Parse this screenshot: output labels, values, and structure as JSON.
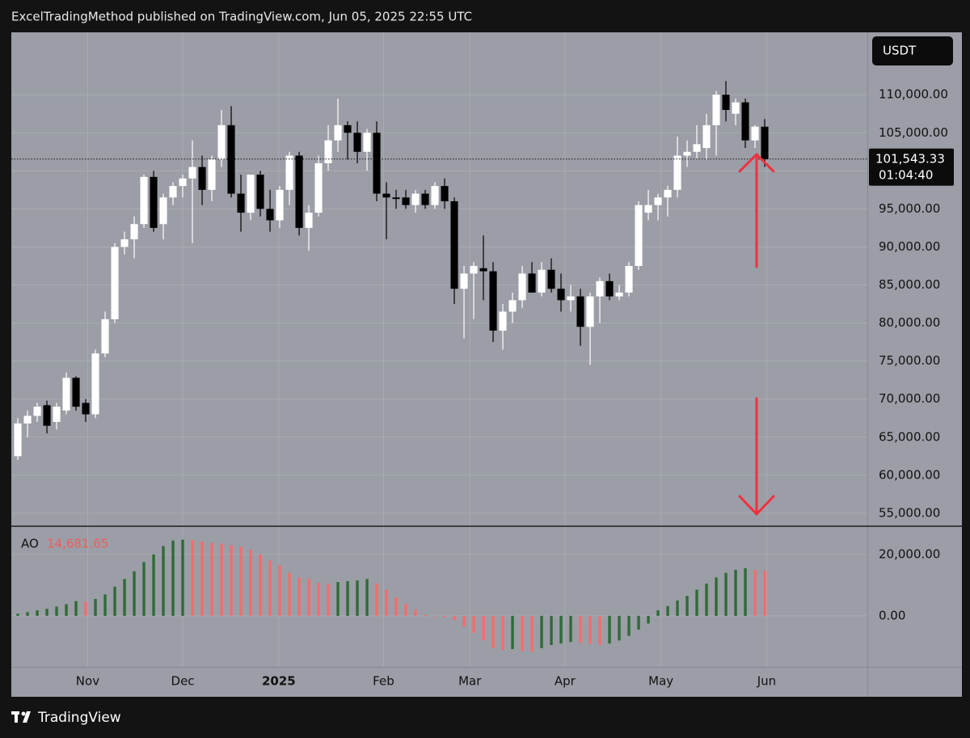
{
  "header": {
    "title": "ExcelTradingMethod published on TradingView.com, Jun 05, 2025 22:55 UTC"
  },
  "toolbar": {
    "currency": "USDT"
  },
  "footer": {
    "brand": "TradingView"
  },
  "chart_data": [
    {
      "type": "candlestick",
      "categories": [
        null,
        null,
        null,
        null,
        null,
        null,
        null,
        null,
        null,
        null,
        null,
        null,
        null,
        null,
        null,
        null,
        null,
        null,
        null,
        null,
        null,
        null,
        null,
        null,
        null,
        null,
        null,
        null,
        null,
        null,
        null,
        null,
        null,
        null,
        null,
        null,
        null,
        null,
        null,
        null,
        null,
        null,
        null,
        null,
        null,
        null,
        null,
        null,
        null,
        null,
        null,
        null,
        null,
        null,
        null,
        null,
        null,
        null,
        null,
        null,
        null,
        null,
        null,
        null,
        null,
        null,
        null,
        null,
        null,
        null,
        null,
        null,
        null,
        null,
        null,
        null,
        null,
        null
      ],
      "open": [
        62500,
        66800,
        67800,
        69200,
        67000,
        68500,
        72800,
        69500,
        68000,
        76000,
        80500,
        90000,
        91000,
        93000,
        99200,
        93000,
        96500,
        98000,
        99000,
        100500,
        97500,
        101500,
        106000,
        97000,
        94500,
        99500,
        95000,
        93500,
        97500,
        102000,
        92500,
        94500,
        101000,
        104000,
        106000,
        105000,
        102500,
        105000,
        97000,
        96500,
        96500,
        95500,
        97000,
        95500,
        98000,
        96000,
        84500,
        86500,
        87200,
        86800,
        79000,
        81500,
        83000,
        86500,
        84000,
        87000,
        84500,
        83000,
        83500,
        79500,
        83500,
        85500,
        83500,
        84000,
        87500,
        94500,
        95500,
        96500,
        97500,
        102000,
        102500,
        103000,
        106000,
        110000,
        107500,
        109000,
        104000,
        105800
      ],
      "high": [
        67500,
        68500,
        69500,
        69800,
        69500,
        73500,
        73000,
        70000,
        76500,
        81500,
        90500,
        92000,
        94000,
        99500,
        100000,
        97000,
        98500,
        99500,
        104000,
        102000,
        102000,
        108000,
        108500,
        99500,
        99500,
        100000,
        97500,
        98000,
        102500,
        102500,
        95500,
        102000,
        106000,
        109500,
        106500,
        106500,
        105500,
        106500,
        98500,
        97500,
        97500,
        97500,
        97500,
        98500,
        99000,
        96500,
        87500,
        88000,
        91500,
        88000,
        82500,
        84000,
        87500,
        88000,
        88000,
        88500,
        86500,
        85000,
        84500,
        84000,
        86000,
        86500,
        85000,
        88000,
        96000,
        97500,
        97000,
        98000,
        104500,
        104000,
        106000,
        107500,
        110500,
        111800,
        109500,
        109500,
        106000,
        106800
      ],
      "low": [
        62000,
        65000,
        67000,
        65500,
        66000,
        68000,
        68500,
        67000,
        67500,
        75500,
        80000,
        89000,
        88500,
        92500,
        92000,
        91000,
        95500,
        96500,
        90500,
        95500,
        96000,
        100500,
        96500,
        92000,
        93500,
        94000,
        92000,
        92500,
        95500,
        91500,
        89500,
        94000,
        100000,
        102500,
        101500,
        101000,
        100000,
        96000,
        91000,
        95000,
        95000,
        94500,
        95000,
        95000,
        95000,
        82500,
        78000,
        80500,
        83000,
        77500,
        76500,
        80000,
        82000,
        84000,
        83500,
        84000,
        81500,
        81500,
        77000,
        74500,
        80000,
        83000,
        83000,
        83500,
        87000,
        93500,
        93500,
        94000,
        96500,
        100500,
        101500,
        101500,
        102000,
        106500,
        106000,
        103000,
        103000,
        100500
      ],
      "close": [
        66800,
        67800,
        69000,
        66500,
        69000,
        72800,
        69000,
        68000,
        76000,
        80500,
        90000,
        91000,
        93000,
        99200,
        92500,
        96500,
        98000,
        99000,
        100500,
        97500,
        101500,
        106000,
        97000,
        94500,
        99500,
        95000,
        93500,
        97500,
        102000,
        92500,
        94500,
        101000,
        104000,
        106000,
        105000,
        102500,
        105000,
        97000,
        96500,
        96300,
        95500,
        97000,
        95500,
        98000,
        96000,
        84500,
        86500,
        87500,
        86800,
        79000,
        81500,
        83000,
        86500,
        84000,
        87000,
        84500,
        83000,
        83500,
        79500,
        83500,
        85500,
        83500,
        84000,
        87500,
        95500,
        95500,
        96500,
        97500,
        102000,
        102500,
        103500,
        106000,
        110000,
        108000,
        109000,
        104000,
        105800,
        101543.33
      ],
      "up_color": "#ffffff",
      "down_color": "#000000",
      "last_price": {
        "value": 101543.33,
        "label": "101,543.33"
      },
      "countdown": "01:04:40",
      "xlim": [
        -0.67,
        87.58
      ],
      "xticks": [
        {
          "value": 7.2,
          "label": "Nov"
        },
        {
          "value": 17.0,
          "label": "Dec"
        },
        {
          "value": 26.9,
          "label": "2025",
          "bold": true
        },
        {
          "value": 37.7,
          "label": "Feb"
        },
        {
          "value": 46.6,
          "label": "Mar"
        },
        {
          "value": 56.4,
          "label": "Apr"
        },
        {
          "value": 66.3,
          "label": "May"
        },
        {
          "value": 77.2,
          "label": "Jun"
        }
      ],
      "ylim": [
        53400,
        118200
      ],
      "yticks": [
        {
          "value": 110000,
          "label": "110,000.00"
        },
        {
          "value": 105000,
          "label": "105,000.00"
        },
        {
          "value": 100000,
          "label": "100,000.00"
        },
        {
          "value": 95000,
          "label": "95,000.00"
        },
        {
          "value": 90000,
          "label": "90,000.00"
        },
        {
          "value": 85000,
          "label": "85,000.00"
        },
        {
          "value": 80000,
          "label": "80,000.00"
        },
        {
          "value": 75000,
          "label": "75,000.00"
        },
        {
          "value": 70000,
          "label": "70,000.00"
        },
        {
          "value": 65000,
          "label": "65,000.00"
        },
        {
          "value": 60000,
          "label": "60,000.00"
        },
        {
          "value": 55000,
          "label": "55,000.00"
        }
      ],
      "grid": true
    },
    {
      "type": "bar",
      "name": "AO",
      "legend_value": "14,681.65",
      "values": [
        700,
        1200,
        1800,
        2300,
        3000,
        3800,
        4800,
        4600,
        5500,
        7000,
        9500,
        12000,
        14500,
        17500,
        20000,
        22700,
        24500,
        24800,
        24600,
        24200,
        23800,
        23500,
        23000,
        22500,
        21500,
        20000,
        18000,
        16500,
        14000,
        12500,
        12000,
        10800,
        10500,
        11000,
        11300,
        11500,
        12000,
        10500,
        8500,
        6000,
        4000,
        2000,
        300,
        -200,
        -400,
        -1500,
        -3500,
        -5500,
        -8000,
        -10500,
        -11200,
        -10800,
        -11500,
        -11800,
        -10500,
        -9500,
        -9000,
        -8500,
        -8800,
        -9200,
        -9500,
        -9000,
        -8000,
        -6500,
        -4500,
        -2500,
        1800,
        3200,
        5000,
        6500,
        8500,
        10500,
        12500,
        14000,
        15000,
        15500,
        15000,
        14681.65
      ],
      "up_color": "#2f6b38",
      "down_color": "#f26d6d",
      "ylim": [
        -16600,
        28900
      ],
      "yticks": [
        {
          "value": 20000,
          "label": "20,000.00"
        },
        {
          "value": 0,
          "label": "0.00"
        }
      ]
    }
  ]
}
